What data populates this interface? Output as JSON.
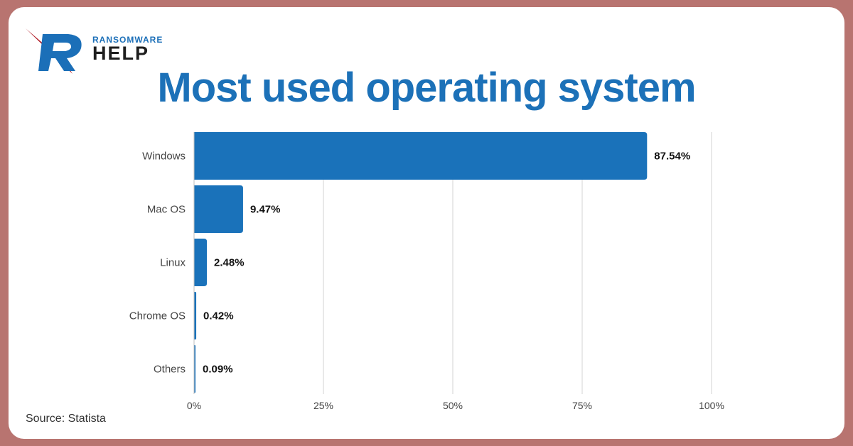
{
  "logo": {
    "top_text": "RANSOMWARE",
    "main_text": "HELP",
    "mark_color": "#1b6fb8",
    "accent_color": "#b3202a"
  },
  "title": "Most used operating system",
  "source": "Source: Statista",
  "colors": {
    "bar": "#1a72ba",
    "grid": "#d3d3d3",
    "title": "#1c71b8",
    "frame": "#b87470"
  },
  "chart_data": {
    "type": "bar",
    "orientation": "horizontal",
    "categories": [
      "Windows",
      "Mac OS",
      "Linux",
      "Chrome OS",
      "Others"
    ],
    "values": [
      87.54,
      9.47,
      2.48,
      0.42,
      0.09
    ],
    "value_labels": [
      "87.54%",
      "9.47%",
      "2.48%",
      "0.42%",
      "0.09%"
    ],
    "xlim": [
      0,
      100
    ],
    "xticks": [
      0,
      25,
      50,
      75,
      100
    ],
    "xtick_labels": [
      "0%",
      "25%",
      "50%",
      "75%",
      "100%"
    ],
    "grid": true,
    "title": "Most used operating system"
  }
}
